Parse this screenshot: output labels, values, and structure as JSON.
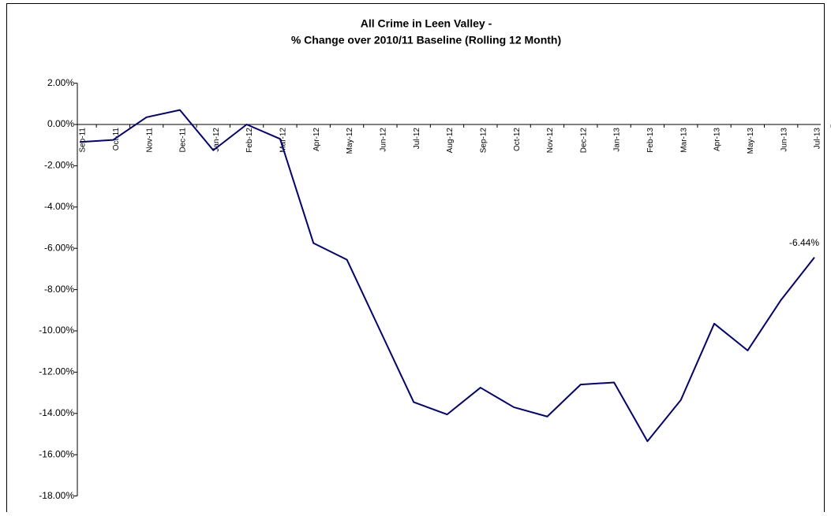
{
  "chart_data": {
    "type": "line",
    "title": [
      "All Crime in Leen Valley -",
      "% Change over 2010/11 Baseline (Rolling 12 Month)"
    ],
    "categories": [
      "Sep-11",
      "Oct-11",
      "Nov-11",
      "Dec-11",
      "Jan-12",
      "Feb-12",
      "Mar-12",
      "Apr-12",
      "May-12",
      "Jun-12",
      "Jul-12",
      "Aug-12",
      "Sep-12",
      "Oct-12",
      "Nov-12",
      "Dec-12",
      "Jan-13",
      "Feb-13",
      "Mar-13",
      "Apr-13",
      "May-13",
      "Jun-13",
      "Jul-13"
    ],
    "values": [
      -0.85,
      -0.75,
      0.35,
      0.7,
      -1.25,
      0.0,
      -0.7,
      -5.75,
      -6.55,
      -10.0,
      -13.45,
      -14.05,
      -12.75,
      -13.7,
      -14.15,
      -12.6,
      -12.5,
      -15.35,
      -13.35,
      -9.65,
      -10.95,
      -8.5,
      -6.44
    ],
    "value_labels": [
      null,
      null,
      null,
      null,
      null,
      null,
      null,
      null,
      null,
      null,
      null,
      null,
      null,
      null,
      null,
      null,
      null,
      null,
      null,
      null,
      null,
      null,
      "-6.44%"
    ],
    "color": "#000080",
    "ylim": [
      -18,
      2
    ],
    "yticks": [
      {
        "value": 2,
        "label": "2.00%"
      },
      {
        "value": 0,
        "label": "0.00%"
      },
      {
        "value": -2,
        "label": "-2.00%"
      },
      {
        "value": -4,
        "label": "-4.00%"
      },
      {
        "value": -6,
        "label": "-6.00%"
      },
      {
        "value": -8,
        "label": "-8.00%"
      },
      {
        "value": -10,
        "label": "-10.00%"
      },
      {
        "value": -12,
        "label": "-12.00%"
      },
      {
        "value": -14,
        "label": "-14.00%"
      },
      {
        "value": -16,
        "label": "-16.00%"
      },
      {
        "value": -18,
        "label": "-18.00%"
      }
    ],
    "grid": false
  }
}
